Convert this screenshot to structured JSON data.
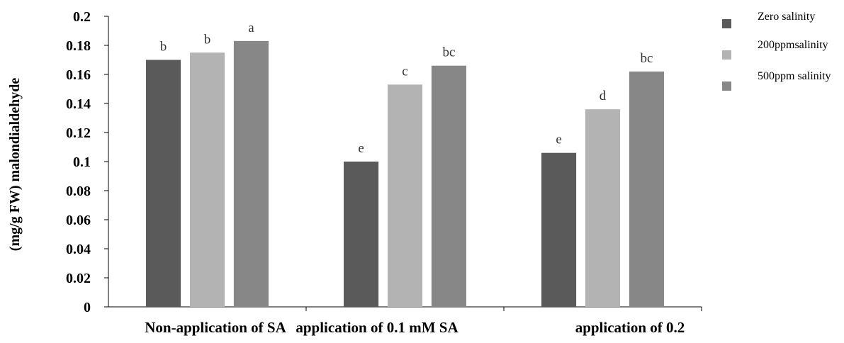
{
  "chart_data": {
    "type": "bar",
    "title": "",
    "xlabel": "",
    "ylabel": "(mg/g FW) malondialdehyde",
    "ylim": [
      0,
      0.2
    ],
    "yticks": [
      "0",
      "0.02",
      "0.04",
      "0.06",
      "0.08",
      "0.1",
      "0.12",
      "0.14",
      "0.16",
      "0.18",
      "0.2"
    ],
    "grid": false,
    "legend_position": "top-right",
    "categories": [
      "Non-application of SA",
      "application of 0.1 mM SA",
      "application of 0.2"
    ],
    "series": [
      {
        "name": "Zero salinity",
        "color": "#5a5a5a",
        "values": [
          0.17,
          0.1,
          0.106
        ],
        "labels": [
          "b",
          "e",
          "e"
        ]
      },
      {
        "name": "200ppmsalinity",
        "color": "#b3b3b3",
        "values": [
          0.175,
          0.153,
          0.136
        ],
        "labels": [
          "b",
          "c",
          "d"
        ]
      },
      {
        "name": "500ppm salinity",
        "color": "#878787",
        "values": [
          0.183,
          0.166,
          0.162
        ],
        "labels": [
          "a",
          "bc",
          "bc"
        ]
      }
    ]
  }
}
